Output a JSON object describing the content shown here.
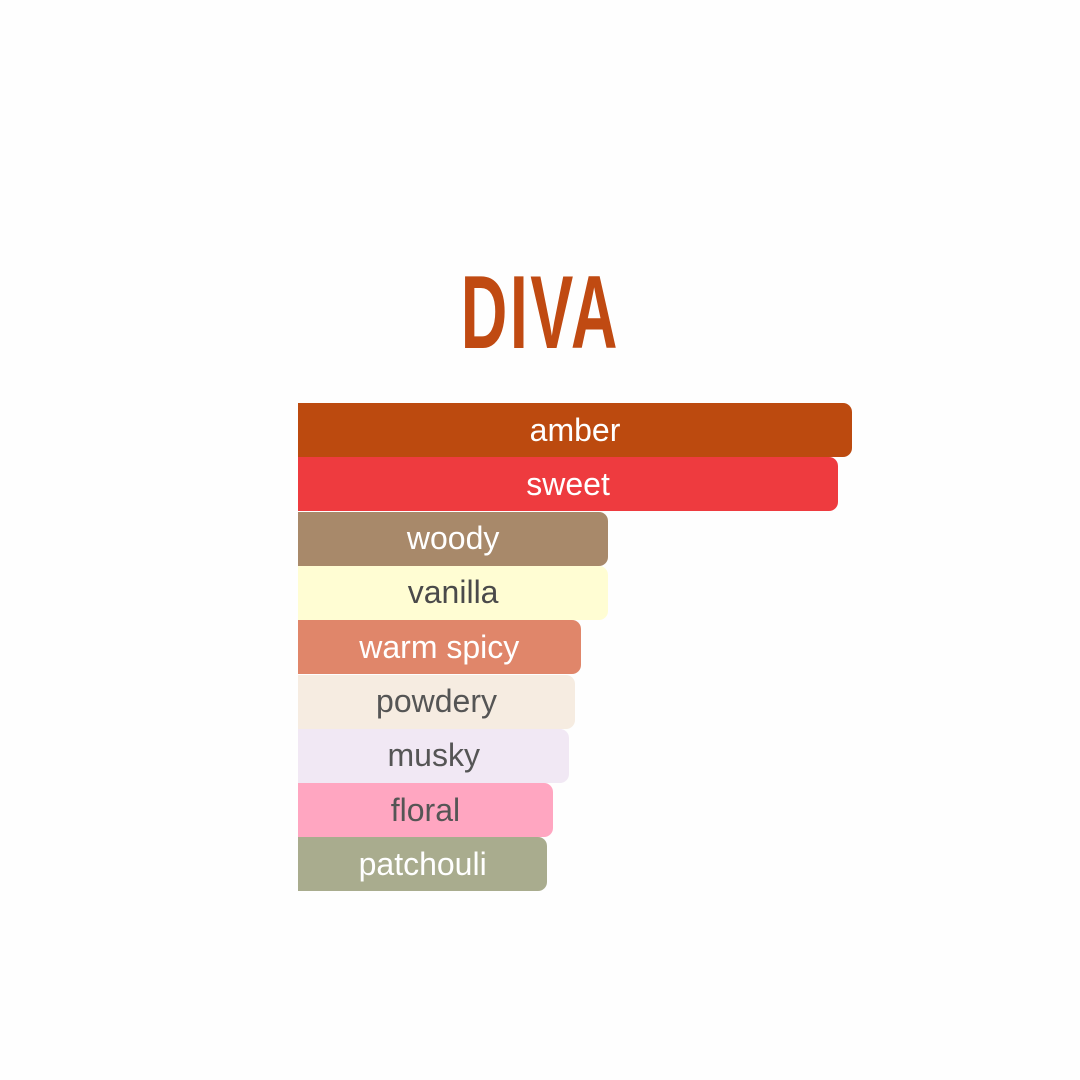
{
  "title": "DIVA",
  "chart_data": {
    "type": "bar",
    "orientation": "horizontal",
    "title": "DIVA",
    "categories": [
      "amber",
      "sweet",
      "woody",
      "vanilla",
      "warm spicy",
      "powdery",
      "musky",
      "floral",
      "patchouli"
    ],
    "values": [
      100,
      97.5,
      56,
      56,
      51,
      50,
      49,
      46,
      45
    ],
    "colors": [
      "#bc4a0f",
      "#ee3b3f",
      "#a8896a",
      "#fffdd3",
      "#e0866a",
      "#f6ece1",
      "#f1e8f4",
      "#ffa6c1",
      "#a9ac8e"
    ],
    "label_colors": [
      "#ffffff",
      "#ffffff",
      "#ffffff",
      "#4a4a4a",
      "#ffffff",
      "#555555",
      "#555555",
      "#555555",
      "#ffffff"
    ],
    "xlim": [
      0,
      100
    ],
    "grid": false
  }
}
